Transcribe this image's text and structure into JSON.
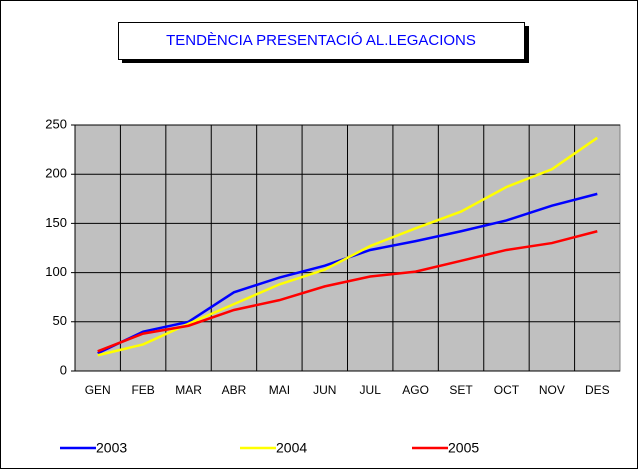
{
  "chart_data": {
    "type": "line",
    "title": "TENDÈNCIA PRESENTACIÓ AL.LEGACIONS",
    "categories": [
      "GEN",
      "FEB",
      "MAR",
      "ABR",
      "MAI",
      "JUN",
      "JUL",
      "AGO",
      "SET",
      "OCT",
      "NOV",
      "DES"
    ],
    "series": [
      {
        "name": "2003",
        "color": "#0000ff",
        "values": [
          18,
          40,
          50,
          80,
          95,
          107,
          123,
          132,
          142,
          153,
          168,
          180
        ]
      },
      {
        "name": "2004",
        "color": "#ffff00",
        "values": [
          16,
          27,
          48,
          68,
          88,
          103,
          127,
          145,
          162,
          187,
          205,
          237
        ]
      },
      {
        "name": "2005",
        "color": "#ff0000",
        "values": [
          20,
          38,
          46,
          62,
          72,
          86,
          96,
          101,
          112,
          123,
          130,
          142
        ]
      }
    ],
    "ylim": [
      0,
      250
    ],
    "yticks": [
      0,
      50,
      100,
      150,
      200,
      250
    ],
    "grid": true,
    "legend": "bottom"
  }
}
